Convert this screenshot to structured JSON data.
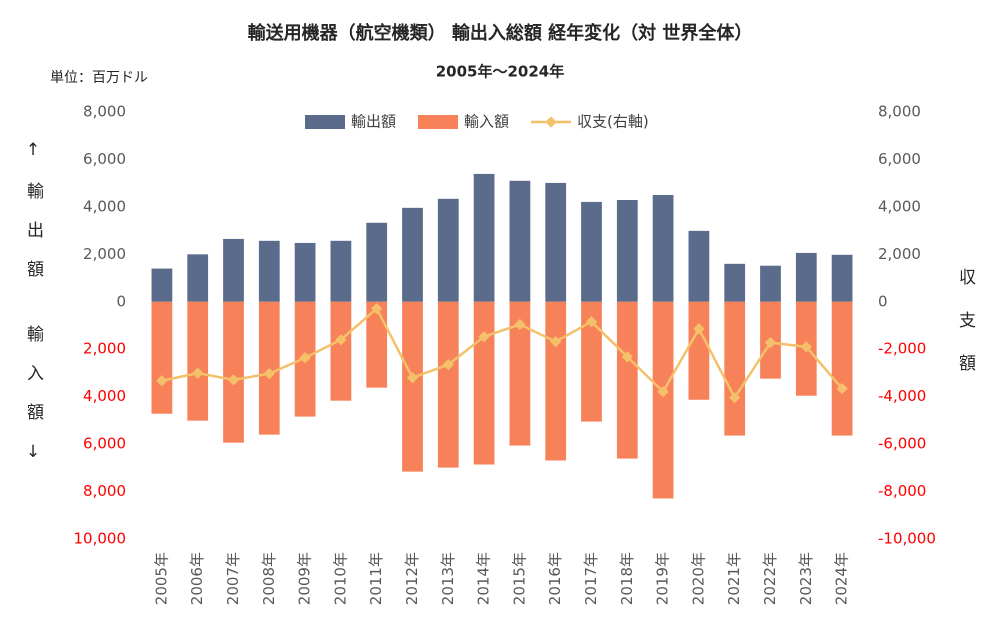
{
  "chart_data": {
    "type": "bar",
    "title": "輸送用機器（航空機類） 輸出入総額 経年変化（対 世界全体）",
    "subtitle": "2005年～2024年",
    "unit_label": "単位：百万ドル",
    "y_label_top": "↑輸出額",
    "y_label_bottom": "輸入額↓",
    "y2_label": "収支額",
    "categories": [
      "2005年",
      "2006年",
      "2007年",
      "2008年",
      "2009年",
      "2010年",
      "2011年",
      "2012年",
      "2013年",
      "2014年",
      "2015年",
      "2016年",
      "2017年",
      "2018年",
      "2019年",
      "2020年",
      "2021年",
      "2022年",
      "2023年",
      "2024年"
    ],
    "series": [
      {
        "name": "輸出額",
        "type": "bar",
        "color": "#5b6b8c",
        "values": [
          1400,
          2000,
          2650,
          2570,
          2480,
          2570,
          3330,
          3960,
          4340,
          5390,
          5100,
          5010,
          4210,
          4290,
          4500,
          2990,
          1600,
          1520,
          2060,
          1980
        ]
      },
      {
        "name": "輸入額",
        "type": "bar",
        "color": "#f7825a",
        "values": [
          -4720,
          -5010,
          -5940,
          -5600,
          -4840,
          -4170,
          -3620,
          -7160,
          -6990,
          -6860,
          -6060,
          -6690,
          -5050,
          -6610,
          -8290,
          -4130,
          -5640,
          -3240,
          -3960,
          -5640
        ]
      },
      {
        "name": "収支(右軸)",
        "type": "line",
        "axis": "y2",
        "color": "#f5c06a",
        "values": [
          -3330,
          -3010,
          -3290,
          -3030,
          -2360,
          -1600,
          -290,
          -3200,
          -2650,
          -1470,
          -960,
          -1680,
          -840,
          -2320,
          -3790,
          -1140,
          -4040,
          -1720,
          -1900,
          -3660
        ]
      }
    ],
    "ylim": [
      -10000,
      8000
    ],
    "yticks": [
      {
        "value": 8000,
        "label": "8,000"
      },
      {
        "value": 6000,
        "label": "6,000"
      },
      {
        "value": 4000,
        "label": "4,000"
      },
      {
        "value": 2000,
        "label": "2,000"
      },
      0,
      {
        "value": -2000,
        "label": "2,000"
      },
      {
        "value": -4000,
        "label": "4,000"
      },
      {
        "value": -6000,
        "label": "6,000"
      },
      {
        "value": -8000,
        "label": "8,000"
      },
      {
        "value": -10000,
        "label": "10,000"
      }
    ],
    "y2lim": [
      -10000,
      8000
    ],
    "y2ticks": [
      {
        "value": 8000,
        "label": "8,000"
      },
      {
        "value": 6000,
        "label": "6,000"
      },
      {
        "value": 4000,
        "label": "4,000"
      },
      {
        "value": 2000,
        "label": "2,000"
      },
      0,
      {
        "value": -2000,
        "label": "-2,000"
      },
      {
        "value": -4000,
        "label": "-4,000"
      },
      {
        "value": -6000,
        "label": "-6,000"
      },
      {
        "value": -8000,
        "label": "-8,000"
      },
      {
        "value": -10000,
        "label": "-10,000"
      }
    ],
    "negative_tick_color": "#ff0000",
    "legend": "top"
  }
}
